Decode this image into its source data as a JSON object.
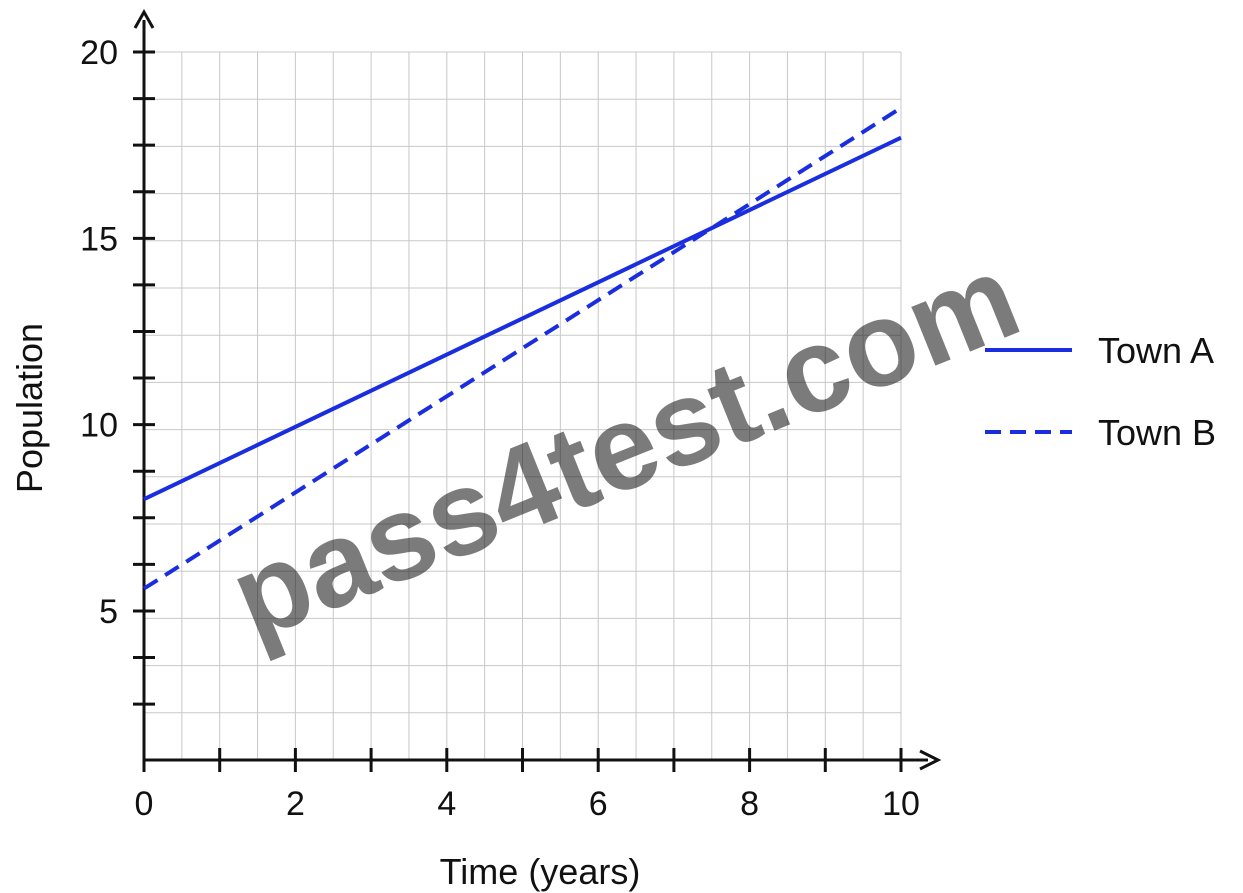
{
  "chart_data": {
    "type": "line",
    "xlabel": "Time (years)",
    "ylabel": "Population",
    "xlim": [
      0,
      10
    ],
    "ylim": [
      1,
      20
    ],
    "x_ticks": [
      0,
      2,
      4,
      6,
      8,
      10
    ],
    "y_ticks": [
      5,
      10,
      15,
      20
    ],
    "x_minor_ticks": [
      1,
      3,
      5,
      7,
      9
    ],
    "y_minor_ticks": [
      2.5,
      3.75,
      6.25,
      7.5,
      8.75,
      11.25,
      12.5,
      13.75,
      16.25,
      17.5,
      18.75
    ],
    "grid": true,
    "legend_position": "right",
    "series": [
      {
        "name": "Town A",
        "style": "solid",
        "color": "#1a2ee0",
        "x": [
          0,
          10
        ],
        "y": [
          8.0,
          17.7
        ]
      },
      {
        "name": "Town B",
        "style": "dashed",
        "color": "#1a2ee0",
        "x": [
          0,
          10
        ],
        "y": [
          5.6,
          18.5
        ]
      }
    ]
  },
  "watermark": "pass4test.com"
}
